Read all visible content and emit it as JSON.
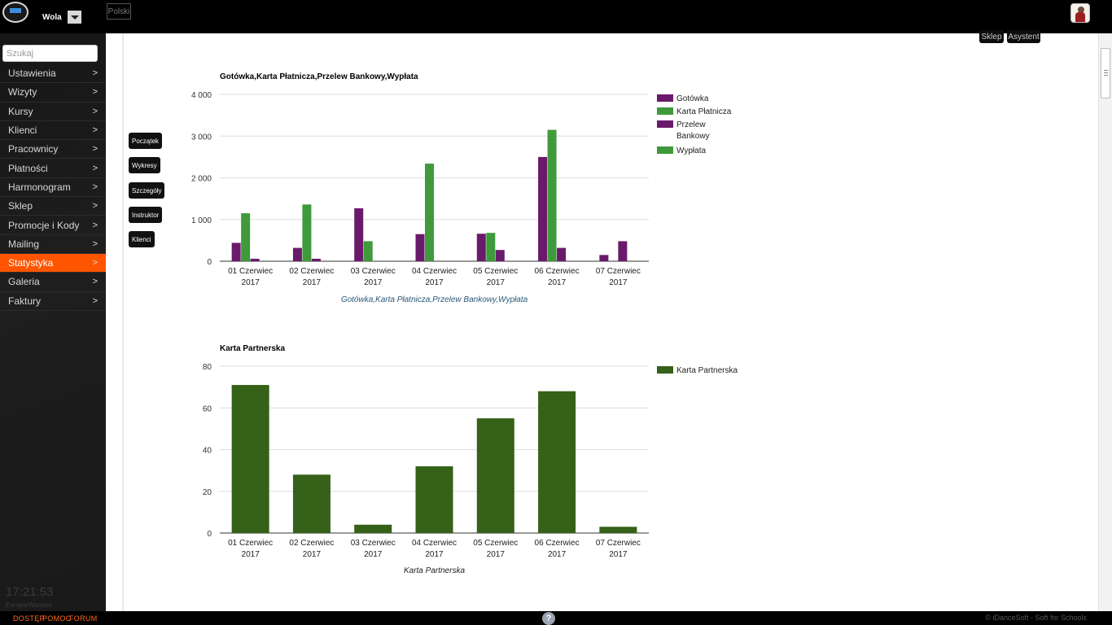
{
  "header": {
    "location": "Wola",
    "language": "Polski"
  },
  "sidebar": {
    "search_placeholder": "Szukaj",
    "items": [
      {
        "label": "Ustawienia",
        "arrow": ">"
      },
      {
        "label": "Wizyty",
        "arrow": ">"
      },
      {
        "label": "Kursy",
        "arrow": ">"
      },
      {
        "label": "Klienci",
        "arrow": ">"
      },
      {
        "label": "Pracownicy",
        "arrow": ">"
      },
      {
        "label": "Płatności",
        "arrow": ">"
      },
      {
        "label": "Harmonogram",
        "arrow": ">"
      },
      {
        "label": "Sklep",
        "arrow": ">"
      },
      {
        "label": "Promocje i Kody",
        "arrow": ">"
      },
      {
        "label": "Mailing",
        "arrow": ">"
      },
      {
        "label": "Statystyka",
        "arrow": ">",
        "active": true
      },
      {
        "label": "Galeria",
        "arrow": ">"
      },
      {
        "label": "Faktury",
        "arrow": ">"
      }
    ],
    "clock": "17:21:53",
    "timezone": "Europe/Warsaw"
  },
  "top_buttons": {
    "shop": "Sklep",
    "assistant": "Asystent"
  },
  "side_buttons": {
    "start": "Początek",
    "charts": "Wykresy",
    "details": "Szczegóły",
    "instructor": "Instruktor",
    "clients": "Klienci"
  },
  "footer": {
    "access": "DOSTĘP",
    "help": "POMOC",
    "forum": "FORUM",
    "help_icon": "?",
    "copyright": "© iDanceSoft - Soft for Schools"
  },
  "colors": {
    "accent": "#ff5500",
    "purple": "#6a1a6a",
    "green": "#3e9a3a",
    "dark_green": "#356118"
  },
  "chart_data": [
    {
      "type": "bar",
      "title": "Gotówka,Karta Płatnicza,Przelew Bankowy,Wypłata",
      "caption": "Gotówka,Karta Płatnicza,Przelew Bankowy,Wypłata",
      "categories": [
        [
          "01 Czerwiec",
          "2017"
        ],
        [
          "02 Czerwiec",
          "2017"
        ],
        [
          "03 Czerwiec",
          "2017"
        ],
        [
          "04 Czerwiec",
          "2017"
        ],
        [
          "05 Czerwiec",
          "2017"
        ],
        [
          "06 Czerwiec",
          "2017"
        ],
        [
          "07 Czerwiec",
          "2017"
        ]
      ],
      "series": [
        {
          "name": "Gotówka",
          "color": "#6a1a6a",
          "values": [
            440,
            320,
            1270,
            650,
            660,
            2500,
            150
          ]
        },
        {
          "name": "Karta Płatnicza",
          "color": "#3e9a3a",
          "values": [
            1150,
            1360,
            480,
            2340,
            680,
            3150,
            0
          ]
        },
        {
          "name": "Przelew Bankowy",
          "color": "#6a1a6a",
          "values": [
            60,
            60,
            0,
            0,
            270,
            320,
            480
          ]
        },
        {
          "name": "Wypłata",
          "color": "#3e9a3a",
          "values": [
            0,
            0,
            0,
            0,
            0,
            0,
            0
          ]
        }
      ],
      "legend": [
        {
          "lines": [
            "Gotówka"
          ],
          "color": "#6a1a6a"
        },
        {
          "lines": [
            "Karta Płatnicza"
          ],
          "color": "#3e9a3a"
        },
        {
          "lines": [
            "Przelew",
            "Bankowy"
          ],
          "color": "#6a1a6a"
        },
        {
          "lines": [
            "Wypłata"
          ],
          "color": "#3e9a3a"
        }
      ],
      "yticks": [
        0,
        1000,
        2000,
        3000,
        4000
      ],
      "ytick_labels": [
        "0",
        "1 000",
        "2 000",
        "3 000",
        "4 000"
      ],
      "ylim": [
        0,
        4000
      ],
      "grid": true,
      "legend_position": "right"
    },
    {
      "type": "bar",
      "title": "Karta Partnerska",
      "caption": "Karta Partnerska",
      "categories": [
        [
          "01 Czerwiec",
          "2017"
        ],
        [
          "02 Czerwiec",
          "2017"
        ],
        [
          "03 Czerwiec",
          "2017"
        ],
        [
          "04 Czerwiec",
          "2017"
        ],
        [
          "05 Czerwiec",
          "2017"
        ],
        [
          "06 Czerwiec",
          "2017"
        ],
        [
          "07 Czerwiec",
          "2017"
        ]
      ],
      "series": [
        {
          "name": "Karta Partnerska",
          "color": "#356118",
          "values": [
            71,
            28,
            4,
            32,
            55,
            68,
            3
          ]
        }
      ],
      "legend": [
        {
          "lines": [
            "Karta Partnerska"
          ],
          "color": "#356118"
        }
      ],
      "yticks": [
        0,
        20,
        40,
        60,
        80
      ],
      "ytick_labels": [
        "0",
        "20",
        "40",
        "60",
        "80"
      ],
      "ylim": [
        0,
        80
      ],
      "grid": true,
      "legend_position": "right"
    }
  ]
}
